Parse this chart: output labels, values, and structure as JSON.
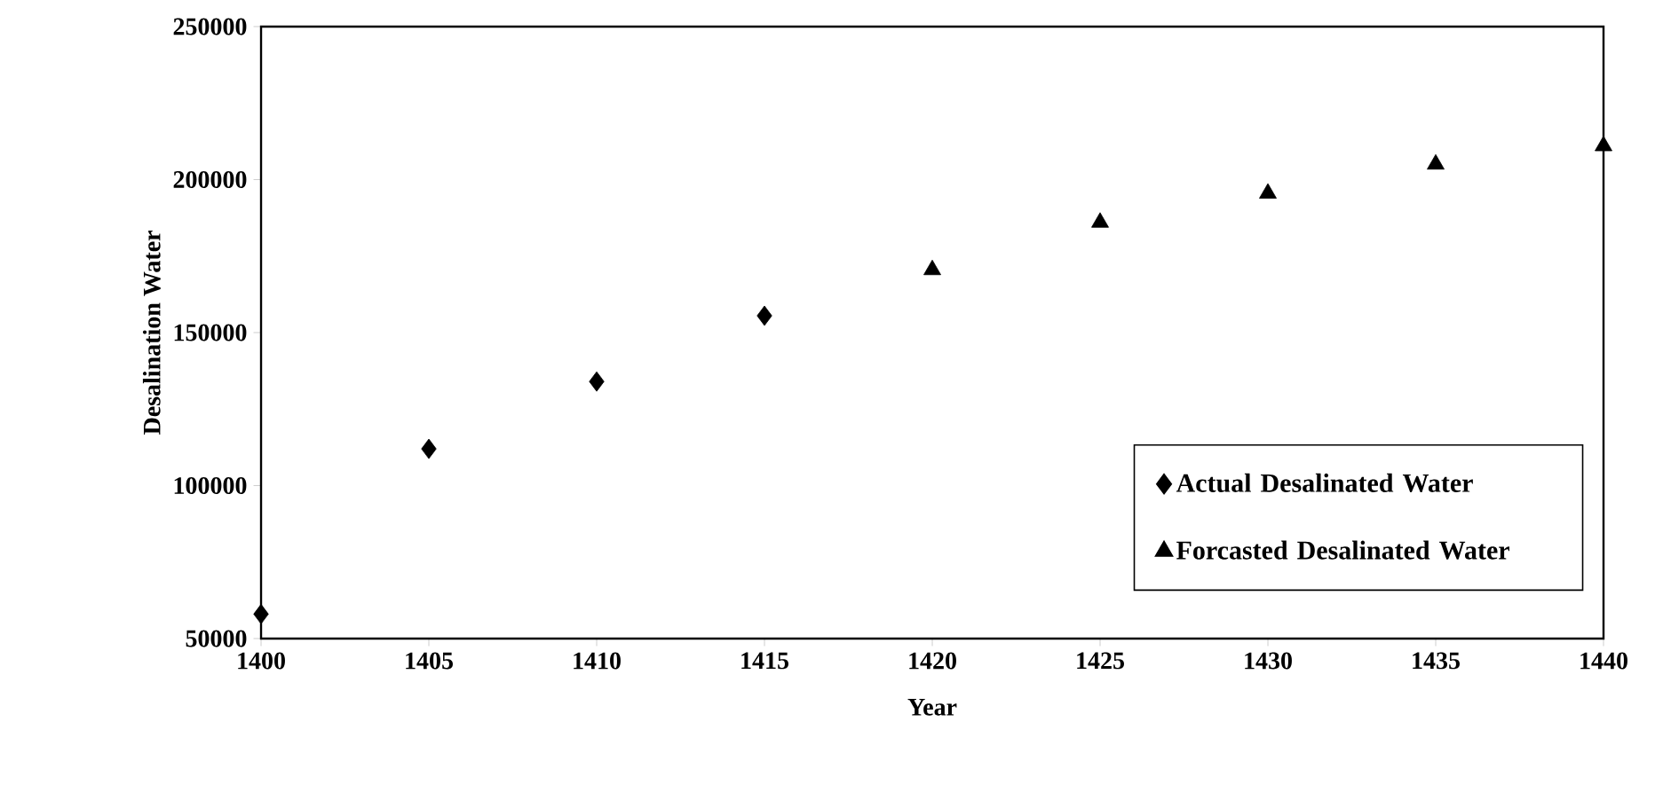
{
  "chart_data": {
    "type": "scatter",
    "xlabel": "Year",
    "ylabel": "Desalination Water",
    "legend": "bottom right",
    "series": [
      {
        "name": "Actual Desalinated Water",
        "color": "#000000",
        "marker": "diamond",
        "x": [
          1400,
          1405,
          1410,
          1415
        ],
        "values": [
          58000,
          112000,
          134000,
          155500
        ]
      },
      {
        "name": "Forcasted Desalinated Water",
        "color": "#000000",
        "marker": "triangle",
        "x": [
          1420,
          1425,
          1430,
          1435,
          1440
        ],
        "values": [
          170500,
          186000,
          195500,
          205000,
          211000
        ]
      }
    ],
    "xlim": [
      1400,
      1440
    ],
    "ylim": [
      50000,
      250000
    ],
    "xticks": [
      1400,
      1405,
      1410,
      1415,
      1420,
      1425,
      1430,
      1435,
      1440
    ],
    "yticks": [
      50000,
      100000,
      150000,
      200000,
      250000
    ]
  }
}
